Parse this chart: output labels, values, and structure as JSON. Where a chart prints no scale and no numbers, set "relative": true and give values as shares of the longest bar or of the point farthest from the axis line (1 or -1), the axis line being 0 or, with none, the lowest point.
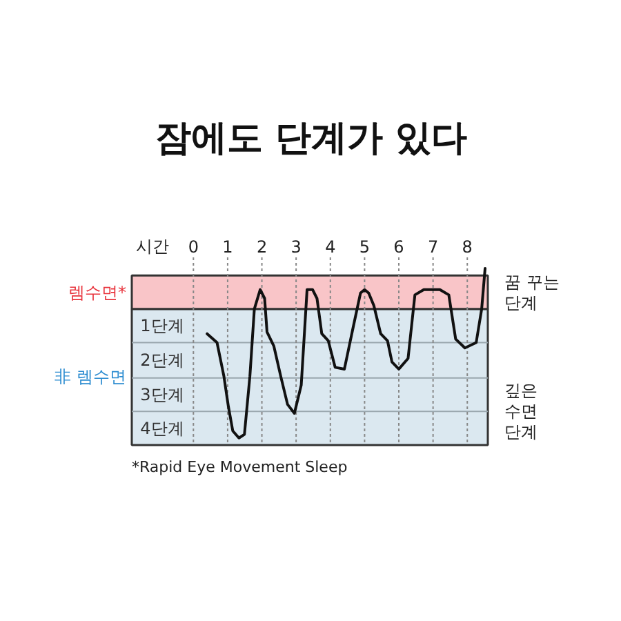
{
  "chart_data": {
    "type": "line",
    "title": "잠에도 단계가 있다",
    "xlabel": "시간",
    "relative": true,
    "x": [
      0.4,
      0.69,
      0.89,
      1.02,
      1.15,
      1.33,
      1.49,
      1.65,
      1.78,
      1.95,
      2.08,
      2.15,
      2.35,
      2.55,
      2.75,
      2.95,
      3.15,
      3.32,
      3.48,
      3.61,
      3.75,
      3.94,
      4.14,
      4.41,
      4.67,
      4.88,
      5.0,
      5.12,
      5.27,
      5.47,
      5.67,
      5.8,
      6.0,
      6.27,
      6.47,
      6.73,
      7.2,
      7.46,
      7.66,
      7.93,
      8.26,
      8.42,
      8.52
    ],
    "series": [
      {
        "color": "#111111",
        "values": [
          0.63,
          0.58,
          0.39,
          0.22,
          0.08,
          0.04,
          0.06,
          0.39,
          0.77,
          0.88,
          0.83,
          0.64,
          0.56,
          0.39,
          0.23,
          0.18,
          0.34,
          0.88,
          0.88,
          0.83,
          0.63,
          0.59,
          0.44,
          0.43,
          0.67,
          0.86,
          0.88,
          0.86,
          0.79,
          0.63,
          0.59,
          0.47,
          0.43,
          0.49,
          0.85,
          0.88,
          0.88,
          0.85,
          0.6,
          0.55,
          0.58,
          0.77,
          1.0
        ]
      }
    ],
    "xlim": [
      -1.8,
      8.6
    ],
    "xticks": [
      0,
      1,
      2,
      3,
      4,
      5,
      6,
      7,
      8
    ],
    "grid": "x",
    "marker": "none",
    "line_style": "solid",
    "bands": [
      {
        "axis": "y",
        "from": 0.77,
        "to": 0.96,
        "label": "렘수면*",
        "color": "#f9c5c8"
      },
      {
        "axis": "y",
        "from": 0,
        "to": 0.77,
        "label": "非 렘수면",
        "color": "#dbe8f0"
      }
    ],
    "ref_lines": [
      {
        "axis": "y",
        "value": 0.19,
        "color": "#9aa7ae"
      },
      {
        "axis": "y",
        "value": 0.38,
        "color": "#9aa7ae"
      },
      {
        "axis": "y",
        "value": 0.58,
        "color": "#9aa7ae"
      }
    ],
    "annotations": [
      "1단계",
      "2단계",
      "3단계",
      "4단계",
      "꿈 꾸는 단계",
      "깊은 수면 단계",
      "*Rapid Eye Movement Sleep"
    ]
  }
}
